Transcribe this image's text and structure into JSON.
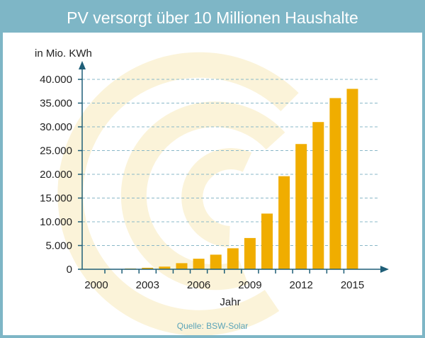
{
  "title": "PV versorgt über 10 Millionen Haushalte",
  "source": "Quelle: BSW-Solar",
  "colors": {
    "header": "#7eb6c6",
    "bar": "#f0ad00",
    "axis": "#1f5f78",
    "grid": "#8ab8c8",
    "watermark": "#fbf3d9",
    "source_text": "#5aa3b8"
  },
  "chart_data": {
    "type": "bar",
    "title": "PV versorgt über 10 Millionen Haushalte",
    "xlabel": "Jahr",
    "ylabel": "in Mio. KWh",
    "categories": [
      "2000",
      "2001",
      "2002",
      "2003",
      "2004",
      "2005",
      "2006",
      "2007",
      "2008",
      "2009",
      "2010",
      "2011",
      "2012",
      "2013",
      "2014",
      "2015"
    ],
    "x_tick_labels": [
      "2000",
      "2003",
      "2006",
      "2009",
      "2012",
      "2015"
    ],
    "values": [
      60,
      76,
      162,
      313,
      557,
      1282,
      2220,
      3075,
      4420,
      6583,
      11729,
      19599,
      26380,
      31010,
      36056,
      38000
    ],
    "y_ticks": [
      0,
      5000,
      10000,
      15000,
      20000,
      25000,
      30000,
      35000,
      40000
    ],
    "y_tick_labels": [
      "0",
      "5.000",
      "10.000",
      "15.000",
      "20.000",
      "25.000",
      "30.000",
      "35.000",
      "40.000"
    ],
    "ylim": [
      0,
      40000
    ],
    "grid": true,
    "legend": "none"
  }
}
